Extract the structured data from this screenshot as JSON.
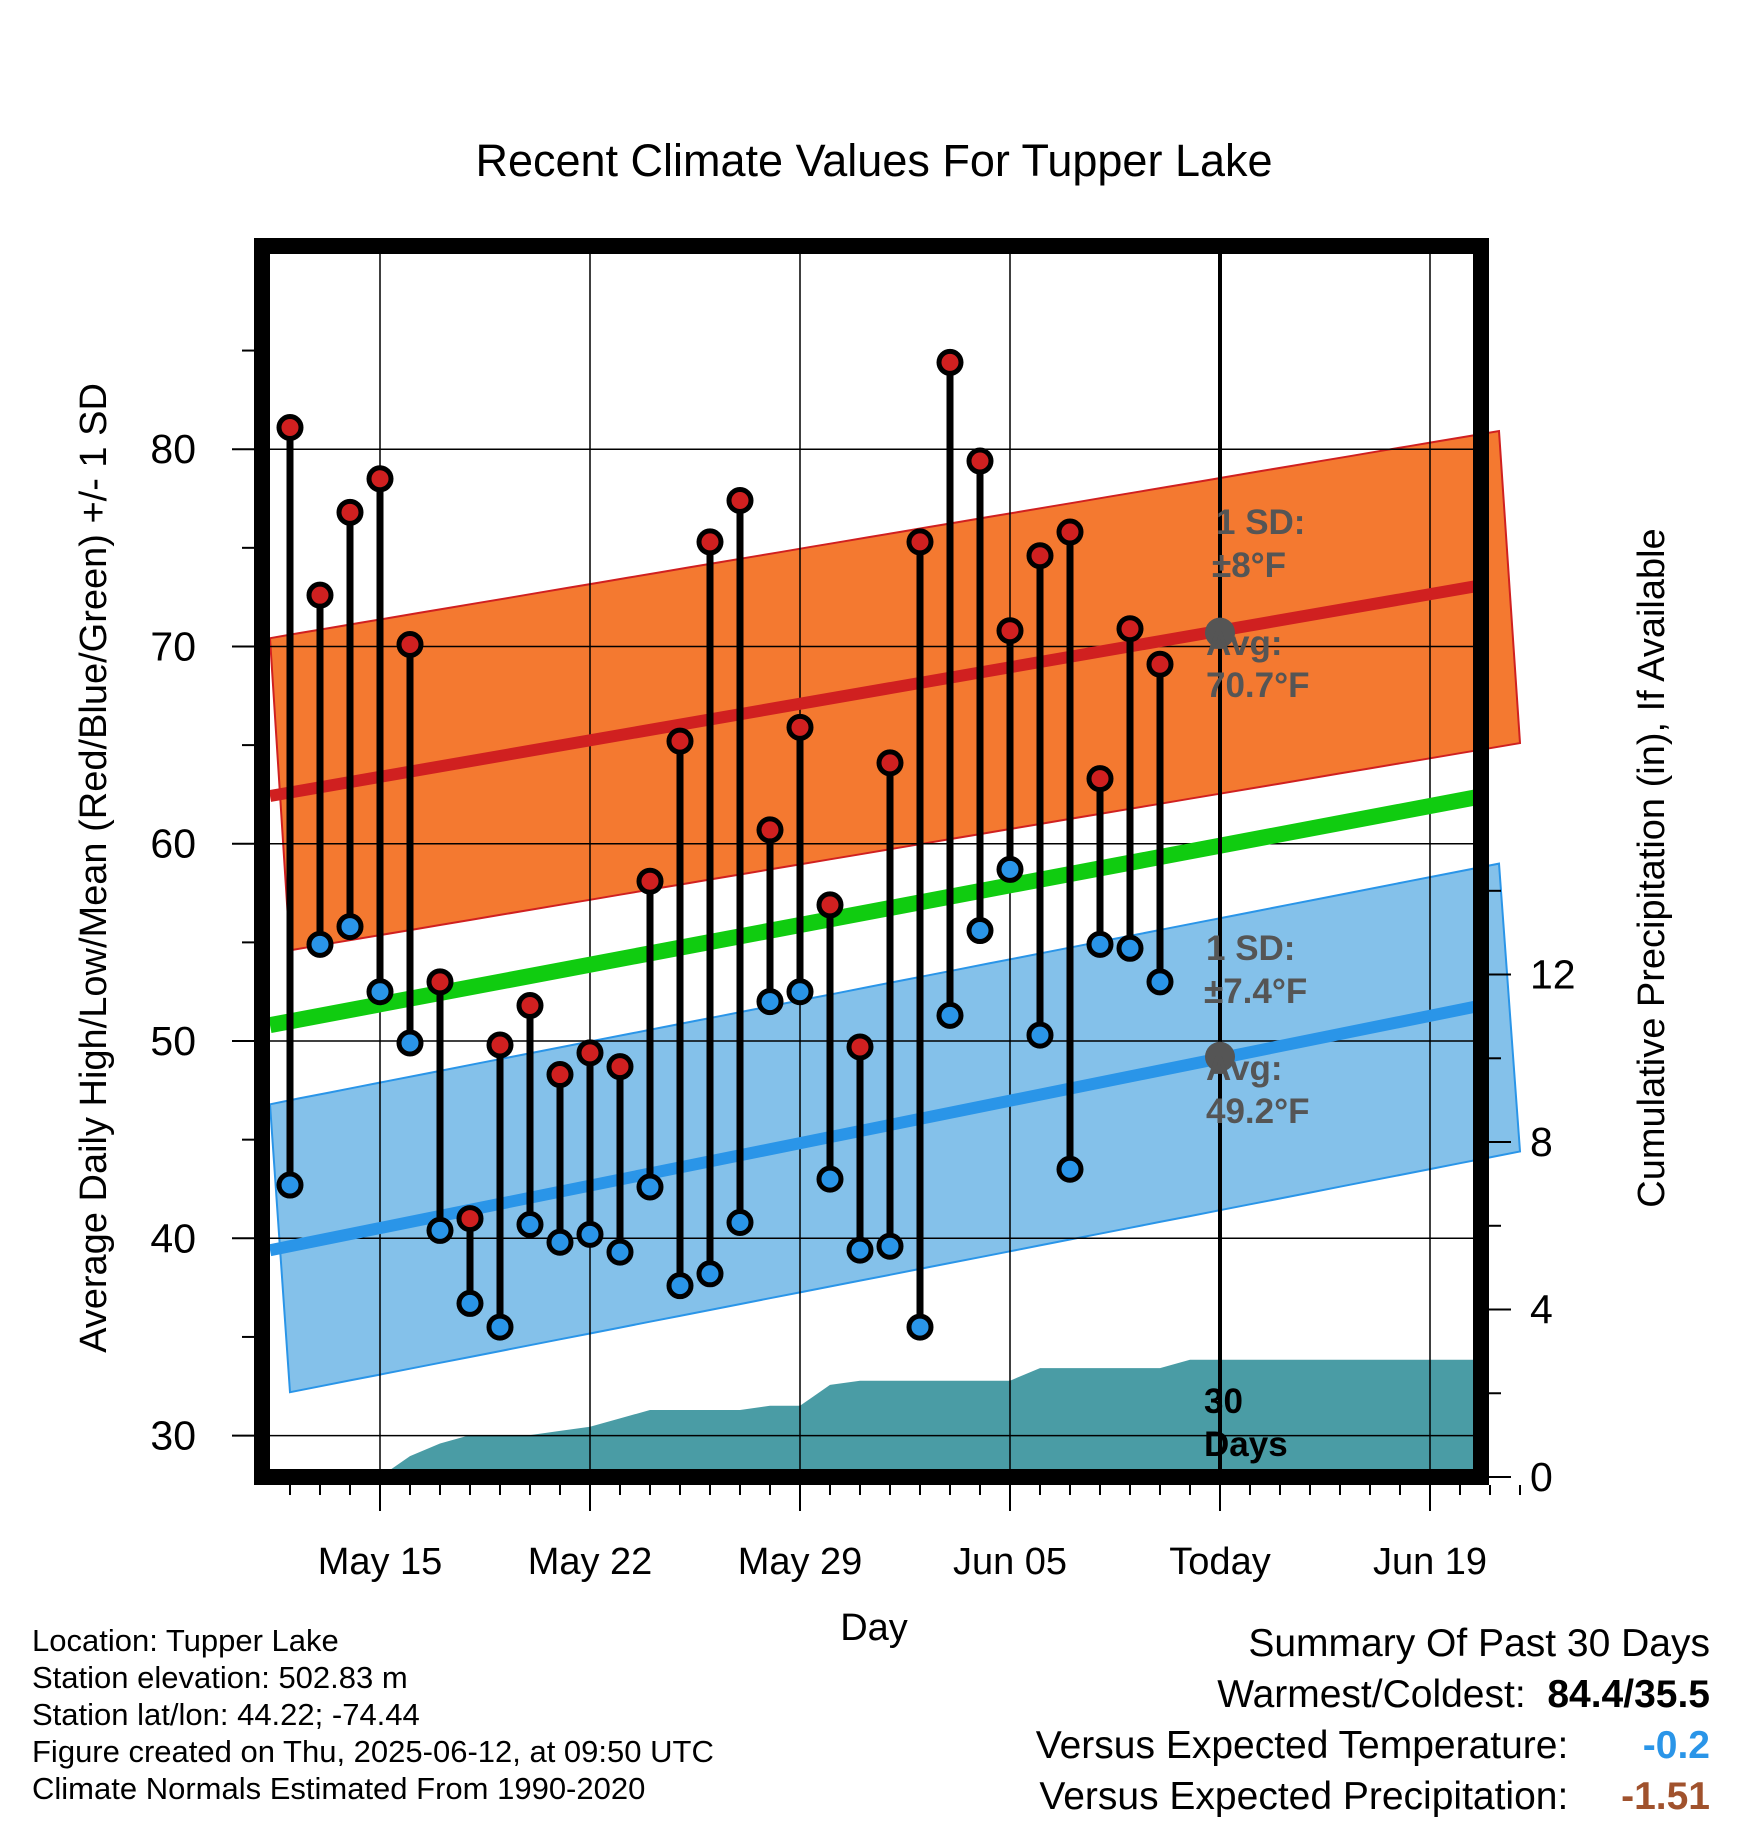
{
  "chart_data": {
    "type": "line",
    "title": "Recent Climate Values For Tupper Lake",
    "xlabel": "Day",
    "ylabel": "Average Daily High/Low/Mean (Red/Blue/Green) +/- 1 SD",
    "y2label": "Cumulative Precipitation (in), If Available",
    "x_tick_labels": [
      "May 15",
      "May 22",
      "May 29",
      "Jun 05",
      "Today",
      "Jun 19"
    ],
    "y_ticks": [
      30,
      40,
      50,
      60,
      70,
      80
    ],
    "y2_ticks": [
      0,
      4,
      8,
      12
    ],
    "ylim": [
      27.9,
      90.3
    ],
    "y2lim": [
      0,
      29.4
    ],
    "dates": [
      "May 12",
      "May 13",
      "May 14",
      "May 15",
      "May 16",
      "May 17",
      "May 18",
      "May 19",
      "May 20",
      "May 21",
      "May 22",
      "May 23",
      "May 24",
      "May 25",
      "May 26",
      "May 27",
      "May 28",
      "May 29",
      "May 30",
      "May 31",
      "Jun 01",
      "Jun 02",
      "Jun 03",
      "Jun 04",
      "Jun 05",
      "Jun 06",
      "Jun 07",
      "Jun 08",
      "Jun 09",
      "Jun 10",
      "Jun 11"
    ],
    "series": [
      {
        "name": "High",
        "values": [
          81.1,
          72.6,
          76.8,
          78.5,
          70.1,
          53.0,
          41.0,
          49.8,
          51.8,
          48.3,
          49.4,
          48.7,
          58.1,
          65.2,
          75.3,
          77.4,
          60.7,
          65.9,
          56.9,
          49.7,
          64.1,
          75.3,
          84.4,
          79.4,
          70.8,
          74.6,
          75.8,
          63.3,
          70.9,
          69.1,
          null
        ]
      },
      {
        "name": "Low",
        "values": [
          42.7,
          54.9,
          55.8,
          52.5,
          49.9,
          40.4,
          36.7,
          35.5,
          40.7,
          39.8,
          40.2,
          39.3,
          42.6,
          37.6,
          38.2,
          40.8,
          52.0,
          52.5,
          43.0,
          39.4,
          39.6,
          35.5,
          51.3,
          55.6,
          58.7,
          50.3,
          43.5,
          54.9,
          54.7,
          53.0,
          null
        ]
      }
    ],
    "normal_high": {
      "start": 62.6,
      "end": 73.1,
      "sd": 8,
      "avg_label": "Avg:",
      "avg_value": "70.7°F",
      "sd_title": "1 SD:",
      "sd_value": "±8°F"
    },
    "normal_low": {
      "start": 39.6,
      "end": 51.8,
      "sd": 7.4,
      "avg_label": "Avg:",
      "avg_value": "49.2°F",
      "sd_title": "1 SD:",
      "sd_value": "±7.4°F"
    },
    "normal_mean": {
      "start": 51.0,
      "end": 62.4
    },
    "precipitation_dates": [
      "May 15",
      "May 16",
      "May 17",
      "May 18",
      "May 19",
      "May 20",
      "May 21",
      "May 22",
      "May 23",
      "May 24",
      "May 25",
      "May 26",
      "May 27",
      "May 28",
      "May 29",
      "May 30",
      "May 31",
      "Jun 01",
      "Jun 02",
      "Jun 03",
      "Jun 04",
      "Jun 05",
      "Jun 06",
      "Jun 07",
      "Jun 08",
      "Jun 09",
      "Jun 10",
      "Jun 11"
    ],
    "precipitation": [
      0.0,
      0.5,
      0.8,
      1.0,
      1.0,
      1.0,
      1.1,
      1.2,
      1.4,
      1.6,
      1.6,
      1.6,
      1.6,
      1.7,
      1.7,
      2.2,
      2.3,
      2.3,
      2.3,
      2.3,
      2.3,
      2.3,
      2.6,
      2.6,
      2.6,
      2.6,
      2.6,
      2.8
    ],
    "today_label": "30 Days",
    "colors": {
      "high": "#d02020",
      "low": "#2a95e8",
      "mean": "#10cc10",
      "high_band": "#f47930",
      "low_band": "#84c1ea",
      "precip": "#4a9ca5",
      "marker": "#555555"
    }
  },
  "info": {
    "location": "Location: Tupper Lake",
    "elevation": "Station elevation: 502.83 m",
    "latlon": "Station lat/lon: 44.22; -74.44",
    "created": "Figure created on Thu, 2025-06-12, at 09:50 UTC",
    "normals": "Climate Normals Estimated From 1990-2020"
  },
  "summary": {
    "title": "Summary Of Past 30 Days",
    "warmest_label": "Warmest/Coldest:",
    "warmest_value": "84.4/35.5",
    "temp_label": "Versus Expected Temperature:",
    "temp_value": "-0.2",
    "temp_color": "#2a95e8",
    "precip_label": "Versus Expected Precipitation:",
    "precip_value": "-1.51",
    "precip_color": "#a0522d"
  }
}
